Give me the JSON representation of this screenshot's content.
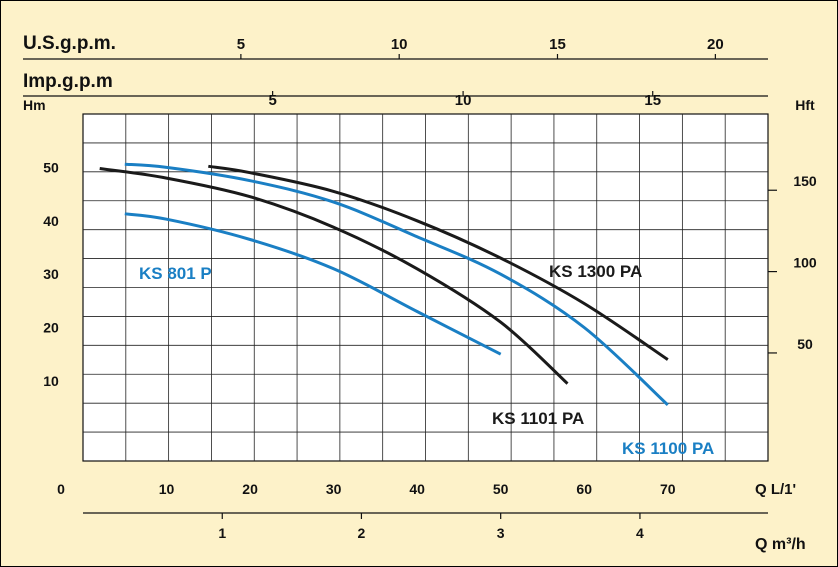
{
  "chart_data": {
    "type": "line",
    "x_axis": {
      "label": "Q  L/1'",
      "ticks": [
        "0",
        "10",
        "20",
        "30",
        "40",
        "50",
        "60",
        "70"
      ],
      "range": [
        0,
        82
      ]
    },
    "y_axis_left": {
      "label": "Hm",
      "ticks": [
        "10",
        "20",
        "30",
        "40",
        "50"
      ],
      "range": [
        -5,
        60
      ]
    },
    "y_axis_right": {
      "label": "Hft",
      "ticks": [
        "50",
        "100",
        "150"
      ]
    },
    "top_axis_1": {
      "label": "U.S.g.p.m.",
      "ticks": [
        "5",
        "10",
        "15",
        "20"
      ],
      "positions_q": [
        18.9,
        37.85,
        56.8,
        75.7
      ]
    },
    "top_axis_2": {
      "label": "Imp.g.p.m",
      "ticks": [
        "5",
        "10",
        "15"
      ],
      "positions_q": [
        22.7,
        45.5,
        68.2
      ]
    },
    "bottom_axis": {
      "label": "Q m³/h",
      "ticks": [
        "1",
        "2",
        "3",
        "4"
      ],
      "positions_q": [
        16.67,
        33.33,
        50,
        66.67
      ]
    },
    "grid": true,
    "series": [
      {
        "name": "KS 801 P",
        "color": "#1a7fc4",
        "label_color": "#1a7fc4",
        "x": [
          5,
          10,
          20,
          30,
          40,
          50
        ],
        "y": [
          41.3,
          40.3,
          36.5,
          31,
          23,
          15
        ]
      },
      {
        "name": "KS 1101 PA",
        "color": "#1a1a1a",
        "label_color": "#1a1a1a",
        "x": [
          2,
          10,
          20,
          30,
          40,
          50,
          58
        ],
        "y": [
          49.8,
          48,
          44.5,
          38.8,
          31,
          21,
          9.5
        ]
      },
      {
        "name": "KS 1100 PA",
        "color": "#1a7fc4",
        "label_color": "#1a7fc4",
        "x": [
          5,
          10,
          20,
          30,
          40,
          50,
          60,
          70
        ],
        "y": [
          50.6,
          50,
          47.5,
          43.5,
          37,
          30,
          20,
          5.5
        ]
      },
      {
        "name": "KS 1300 PA",
        "color": "#1a1a1a",
        "label_color": "#1a1a1a",
        "x": [
          15,
          20,
          30,
          40,
          50,
          60,
          70
        ],
        "y": [
          50.2,
          49,
          45.5,
          40,
          33,
          24.5,
          14
        ]
      }
    ]
  }
}
